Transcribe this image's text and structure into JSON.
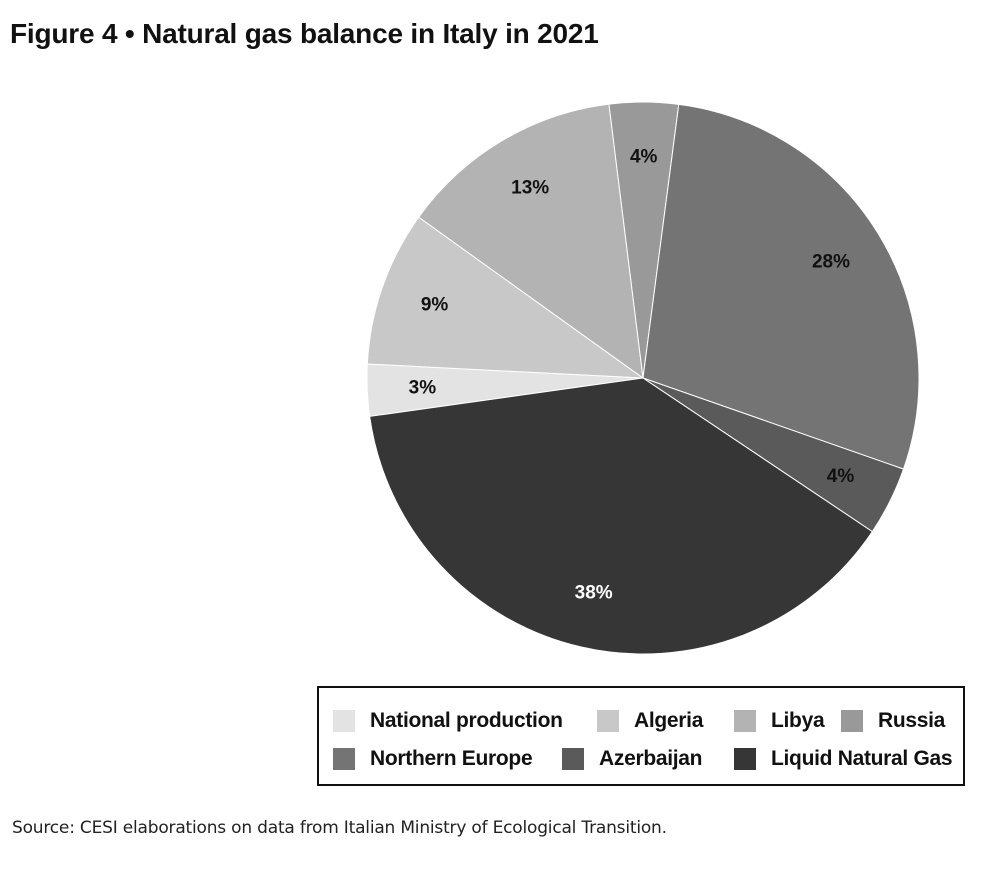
{
  "title": "Figure 4 • Natural gas balance in Italy in 2021",
  "source": "Source: CESI elaborations on data from Italian Ministry of Ecological Transition.",
  "chart_data": {
    "type": "pie",
    "title": "Figure 4 • Natural gas balance in Italy in 2021",
    "legend_position": "bottom",
    "slices": [
      {
        "name": "National production",
        "value": 3,
        "label": "3%",
        "color": "#e3e3e3",
        "label_color": "#111111"
      },
      {
        "name": "Algeria",
        "value": 9,
        "label": "9%",
        "color": "#c8c8c8",
        "label_color": "#111111"
      },
      {
        "name": "Libya",
        "value": 13,
        "label": "13%",
        "color": "#b3b3b3",
        "label_color": "#111111"
      },
      {
        "name": "Russia",
        "value": 4,
        "label": "4%",
        "color": "#999999",
        "label_color": "#111111"
      },
      {
        "name": "Northern Europe",
        "value": 28,
        "label": "28%",
        "color": "#747474",
        "label_color": "#111111"
      },
      {
        "name": "Azerbaijan",
        "value": 4,
        "label": "4%",
        "color": "#5a5a5a",
        "label_color": "#111111"
      },
      {
        "name": "Liquid Natural Gas",
        "value": 38,
        "label": "38%",
        "color": "#363636",
        "label_color": "#ffffff"
      }
    ]
  }
}
